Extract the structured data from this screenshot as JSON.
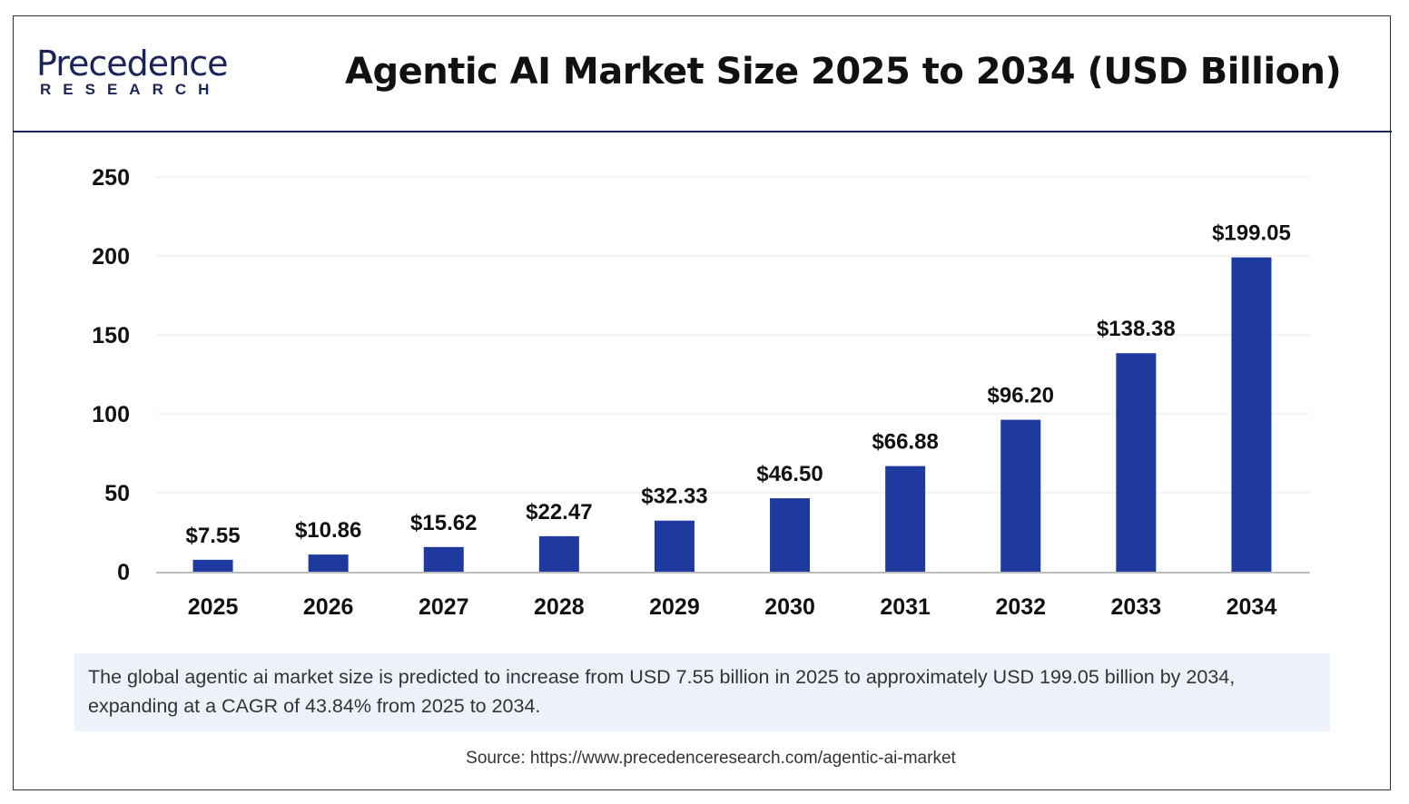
{
  "logo": {
    "text": "Precedence",
    "sub": "RESEARCH"
  },
  "chart_data": {
    "type": "bar",
    "title": "Agentic AI Market Size 2025 to 2034 (USD Billion)",
    "categories": [
      "2025",
      "2026",
      "2027",
      "2028",
      "2029",
      "2030",
      "2031",
      "2032",
      "2033",
      "2034"
    ],
    "values": [
      7.55,
      10.86,
      15.62,
      22.47,
      32.33,
      46.5,
      66.88,
      96.2,
      138.38,
      199.05
    ],
    "data_labels": [
      "$7.55",
      "$10.86",
      "$15.62",
      "$22.47",
      "$32.33",
      "$46.50",
      "$66.88",
      "$96.20",
      "$138.38",
      "$199.05"
    ],
    "yticks": [
      0,
      50,
      100,
      150,
      200,
      250
    ],
    "ylim": [
      0,
      250
    ],
    "grid": true,
    "bar_color": "#1f3a9e",
    "xlabel": "",
    "ylabel": ""
  },
  "note": "The global agentic ai market size is predicted to increase from USD 7.55 billion in 2025 to approximately USD 199.05 billion by 2034, expanding at a CAGR of 43.84% from 2025 to 2034.",
  "source": "Source: https://www.precedenceresearch.com/agentic-ai-market"
}
